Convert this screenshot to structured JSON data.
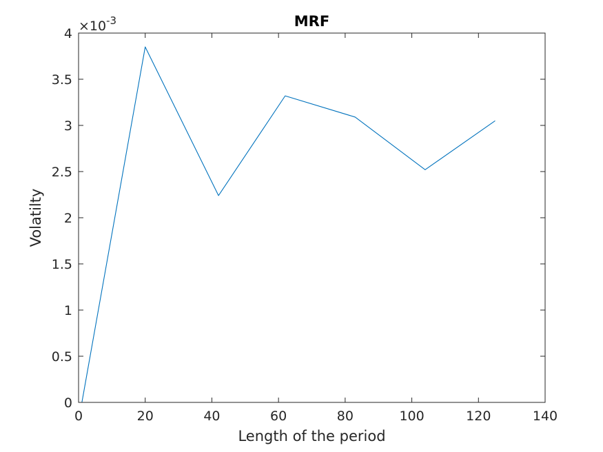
{
  "chart_data": {
    "type": "line",
    "title": "MRF",
    "xlabel": "Length of the period",
    "ylabel": "Volatilty",
    "xlim": [
      0,
      140
    ],
    "ylim": [
      0,
      4
    ],
    "y_multiplier_prefix": "×10",
    "y_multiplier_power": "-3",
    "xticks": [
      0,
      20,
      40,
      60,
      80,
      100,
      120,
      140
    ],
    "yticks": [
      0,
      0.5,
      1,
      1.5,
      2,
      2.5,
      3,
      3.5,
      4
    ],
    "grid": false,
    "series": [
      {
        "color": "#0072BD",
        "x": [
          1,
          20,
          42,
          62,
          83,
          104,
          125
        ],
        "y": [
          0,
          3.85,
          2.24,
          3.32,
          3.09,
          2.52,
          3.05
        ]
      }
    ]
  }
}
